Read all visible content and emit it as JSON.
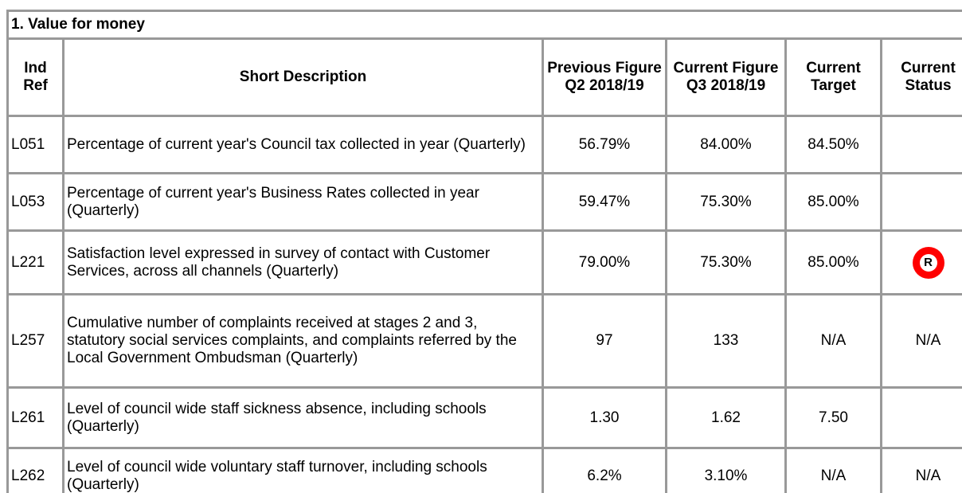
{
  "table": {
    "title": "1. Value for money",
    "headers": [
      "Ind Ref",
      "Short Description",
      "Previous Figure Q2 2018/19",
      "Current Figure Q3 2018/19",
      "Current Target",
      "Current Status"
    ],
    "rows": [
      {
        "ref": "L051",
        "description": "Percentage of current year's Council tax collected in year (Quarterly)",
        "previous": "56.79%",
        "current": "84.00%",
        "target": "84.50%"
      },
      {
        "ref": "L053",
        "description": "Percentage of current year's Business Rates collected in year (Quarterly)",
        "previous": "59.47%",
        "current": "75.30%",
        "target": "85.00%"
      },
      {
        "ref": "L221",
        "description": "Satisfaction level expressed in survey of contact with Customer Services, across all channels (Quarterly)",
        "previous": "79.00%",
        "current": "75.30%",
        "target": "85.00%",
        "status_icon": "R"
      },
      {
        "ref": "L257",
        "description": "Cumulative number of complaints received at stages 2 and 3, statutory social services complaints, and complaints referred by the Local Government Ombudsman (Quarterly)",
        "previous": "97",
        "current": "133",
        "target": "N/A",
        "status": "N/A"
      },
      {
        "ref": "L261",
        "description": "Level of council wide staff sickness absence, including schools (Quarterly)",
        "previous": "1.30",
        "current": "1.62",
        "target": "7.50"
      },
      {
        "ref": "L262",
        "description": "Level of council wide voluntary staff turnover, including schools (Quarterly)",
        "previous": "6.2%",
        "current": "3.10%",
        "target": "N/A",
        "status": "N/A"
      }
    ]
  }
}
